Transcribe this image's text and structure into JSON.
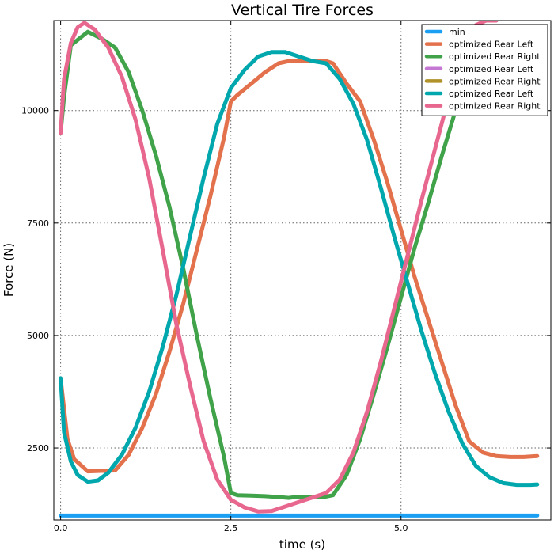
{
  "chart_data": {
    "type": "line",
    "title": "Vertical Tire Forces",
    "xlabel": "time (s)",
    "ylabel": "Force (N)",
    "xlim": [
      -0.1,
      7.2
    ],
    "ylim": [
      900,
      12000
    ],
    "x_ticks": [
      0,
      2.5,
      5
    ],
    "x_tick_labels": [
      "0.0",
      "2.5",
      "5.0"
    ],
    "y_ticks": [
      2500,
      5000,
      7500,
      10000
    ],
    "y_tick_labels": [
      "2500",
      "5000",
      "7500",
      "10000"
    ],
    "grid": true,
    "legend_position": "top-right",
    "series": [
      {
        "name": "min",
        "color": "#1a9ff2",
        "x": [
          0,
          7.0
        ],
        "y": [
          1000,
          1000
        ]
      },
      {
        "name": "optimized Rear Left",
        "color": "#e2714c",
        "x": [
          0,
          0.1,
          0.2,
          0.4,
          0.6,
          0.8,
          1.0,
          1.2,
          1.4,
          1.6,
          1.8,
          2.0,
          2.2,
          2.4,
          2.5,
          2.6,
          2.8,
          3.0,
          3.2,
          3.35,
          3.5,
          3.7,
          3.9,
          4.0,
          4.2,
          4.4,
          4.6,
          4.8,
          5.0,
          5.2,
          5.4,
          5.6,
          5.8,
          6.0,
          6.2,
          6.4,
          6.6,
          6.8,
          7.0
        ],
        "y": [
          4050,
          2700,
          2250,
          1980,
          1990,
          2000,
          2350,
          2950,
          3700,
          4650,
          5700,
          6900,
          8100,
          9400,
          10200,
          10350,
          10600,
          10850,
          11050,
          11100,
          11100,
          11100,
          11100,
          11050,
          10600,
          10200,
          9350,
          8400,
          7350,
          6300,
          5350,
          4400,
          3450,
          2650,
          2400,
          2320,
          2300,
          2300,
          2320
        ]
      },
      {
        "name": "optimized Rear Right",
        "color": "#40a34a",
        "x": [
          0,
          0.05,
          0.15,
          0.4,
          0.6,
          0.8,
          1.0,
          1.2,
          1.4,
          1.6,
          1.8,
          2.0,
          2.2,
          2.4,
          2.5,
          2.6,
          2.8,
          3.0,
          3.2,
          3.35,
          3.5,
          3.7,
          3.9,
          4.0,
          4.2,
          4.4,
          4.6,
          4.8,
          5.0,
          5.2,
          5.4,
          5.6,
          5.8,
          6.0
        ],
        "y": [
          9500,
          10300,
          11450,
          11750,
          11600,
          11400,
          10850,
          10000,
          9000,
          7850,
          6500,
          5000,
          3600,
          2300,
          1500,
          1450,
          1440,
          1430,
          1410,
          1390,
          1420,
          1420,
          1420,
          1450,
          1900,
          2700,
          3700,
          4750,
          5850,
          6950,
          7950,
          9000,
          10000,
          10900
        ]
      },
      {
        "name": "optimized Rear Left",
        "color": "#c577d4",
        "x": [],
        "y": []
      },
      {
        "name": "optimized Rear Right",
        "color": "#b1922a",
        "x": [],
        "y": []
      },
      {
        "name": "optimized Rear Left",
        "color": "#00a8ad",
        "x": [
          0,
          0.05,
          0.15,
          0.25,
          0.4,
          0.55,
          0.7,
          0.9,
          1.1,
          1.3,
          1.5,
          1.7,
          1.9,
          2.1,
          2.3,
          2.5,
          2.7,
          2.9,
          3.1,
          3.3,
          3.5,
          3.7,
          3.9,
          4.1,
          4.3,
          4.5,
          4.7,
          4.9,
          5.1,
          5.3,
          5.5,
          5.7,
          5.9,
          6.1,
          6.3,
          6.5,
          6.7,
          6.9,
          7.0
        ],
        "y": [
          4050,
          2850,
          2200,
          1900,
          1750,
          1780,
          1950,
          2350,
          2950,
          3750,
          4750,
          5900,
          7200,
          8500,
          9700,
          10500,
          10900,
          11200,
          11300,
          11300,
          11200,
          11100,
          11050,
          10700,
          10150,
          9350,
          8300,
          7200,
          6150,
          5100,
          4150,
          3300,
          2600,
          2100,
          1850,
          1720,
          1680,
          1680,
          1690
        ]
      },
      {
        "name": "optimized Rear Right",
        "color": "#e8678f",
        "x": [
          0,
          0.05,
          0.15,
          0.25,
          0.35,
          0.5,
          0.7,
          0.9,
          1.1,
          1.3,
          1.5,
          1.7,
          1.9,
          2.1,
          2.3,
          2.5,
          2.7,
          2.9,
          3.1,
          3.3,
          3.5,
          3.7,
          3.9,
          4.1,
          4.3,
          4.5,
          4.7,
          4.9,
          5.1,
          5.3,
          5.5,
          5.7,
          5.9,
          6.1,
          6.25,
          6.4
        ],
        "y": [
          9500,
          10700,
          11500,
          11850,
          11950,
          11800,
          11400,
          10750,
          9800,
          8500,
          6900,
          5250,
          3900,
          2650,
          1800,
          1350,
          1180,
          1090,
          1100,
          1200,
          1300,
          1400,
          1500,
          1800,
          2400,
          3300,
          4400,
          5600,
          6800,
          8000,
          9150,
          10300,
          11300,
          11900,
          12000,
          12000
        ]
      }
    ]
  }
}
